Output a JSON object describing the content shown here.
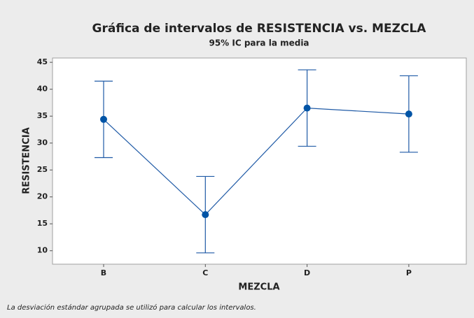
{
  "chart_data": {
    "type": "interval",
    "title": "Gráfica de intervalos de RESISTENCIA vs. MEZCLA",
    "subtitle": "95% IC para la media",
    "x_label": "MEZCLA",
    "y_label": "RESISTENCIA",
    "note": "La desviación estándar agrupada se utilizó para calcular los intervalos.",
    "categories": [
      "B",
      "C",
      "D",
      "P"
    ],
    "values": [
      34.4,
      16.7,
      36.5,
      35.4
    ],
    "errors": [
      7.1,
      7.1,
      7.1,
      7.1
    ],
    "color": "#1f5aa6",
    "ylim": [
      7.5,
      45.8
    ],
    "yticks": [
      10,
      15,
      20,
      25,
      30,
      35,
      40,
      45
    ],
    "grid": false
  }
}
